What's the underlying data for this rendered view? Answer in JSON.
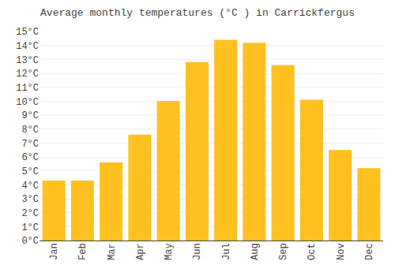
{
  "chart_data": {
    "type": "bar",
    "title": "Average monthly temperatures (°C ) in Carrickfergus",
    "categories": [
      "Jan",
      "Feb",
      "Mar",
      "Apr",
      "May",
      "Jun",
      "Jul",
      "Aug",
      "Sep",
      "Oct",
      "Nov",
      "Dec"
    ],
    "values": [
      4.3,
      4.3,
      5.6,
      7.6,
      10.0,
      12.8,
      14.4,
      14.2,
      12.6,
      10.1,
      6.5,
      5.2
    ],
    "color": "#FFC020",
    "ylim": [
      0,
      15
    ],
    "yticks": [
      {
        "value": 0,
        "label": "0°C"
      },
      {
        "value": 1,
        "label": "1°C"
      },
      {
        "value": 2,
        "label": "2°C"
      },
      {
        "value": 3,
        "label": "3°C"
      },
      {
        "value": 4,
        "label": "4°C"
      },
      {
        "value": 5,
        "label": "5°C"
      },
      {
        "value": 6,
        "label": "6°C"
      },
      {
        "value": 7,
        "label": "7°C"
      },
      {
        "value": 8,
        "label": "8°C"
      },
      {
        "value": 9,
        "label": "9°C"
      },
      {
        "value": 10,
        "label": "10°C"
      },
      {
        "value": 11,
        "label": "11°C"
      },
      {
        "value": 12,
        "label": "12°C"
      },
      {
        "value": 13,
        "label": "13°C"
      },
      {
        "value": 14,
        "label": "14°C"
      },
      {
        "value": 15,
        "label": "15°C"
      }
    ],
    "grid": true
  }
}
